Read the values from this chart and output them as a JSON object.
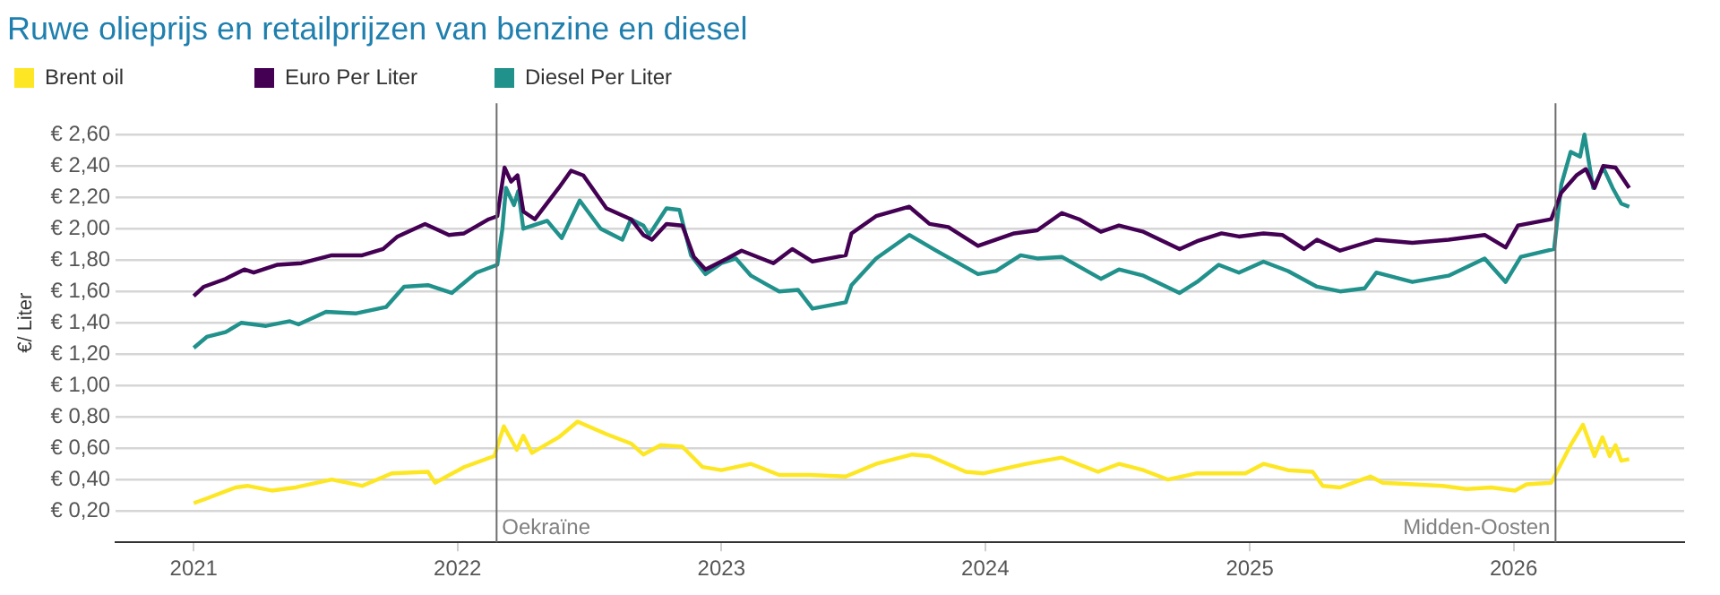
{
  "chart_data": {
    "type": "line",
    "title": "Ruwe olieprijs en retailprijzen van benzine en diesel",
    "ylabel": "€/ Liter",
    "xlim": [
      "2020-09-15",
      "2026-08-25"
    ],
    "xticks": [
      "2021",
      "2022",
      "2023",
      "2024",
      "2025",
      "2026"
    ],
    "ylim": [
      0,
      2.8
    ],
    "yticks": [
      {
        "value": 0.2,
        "label": "€ 0,20"
      },
      {
        "value": 0.4,
        "label": "€ 0,40"
      },
      {
        "value": 0.6,
        "label": "€ 0,60"
      },
      {
        "value": 0.8,
        "label": "€ 0,80"
      },
      {
        "value": 1.0,
        "label": "€ 1,00"
      },
      {
        "value": 1.2,
        "label": "€ 1,20"
      },
      {
        "value": 1.4,
        "label": "€ 1,40"
      },
      {
        "value": 1.6,
        "label": "€ 1,60"
      },
      {
        "value": 1.8,
        "label": "€ 1,80"
      },
      {
        "value": 2.0,
        "label": "€ 2,00"
      },
      {
        "value": 2.2,
        "label": "€ 2,20"
      },
      {
        "value": 2.4,
        "label": "€ 2,40"
      },
      {
        "value": 2.6,
        "label": "€ 2,60"
      }
    ],
    "grid": "y",
    "legend": "top left",
    "marker": "none",
    "line_style": "solid",
    "ref_lines": [
      {
        "axis": "x",
        "value": "2022-02-24",
        "label": "Oekraïne",
        "color": "#6e6e6e"
      },
      {
        "axis": "x",
        "value": "2026-02-28",
        "label": "Midden-Oosten",
        "color": "#6e6e6e"
      }
    ],
    "series": [
      {
        "name": "Brent oil",
        "color": "#fde725",
        "x": [
          "2021-01-01",
          "2021-01-19",
          "2021-02-28",
          "2021-03-16",
          "2021-04-19",
          "2021-05-22",
          "2021-07-11",
          "2021-08-22",
          "2021-10-02",
          "2021-11-21",
          "2021-12-01",
          "2022-01-10",
          "2022-02-21",
          "2022-03-06",
          "2022-03-24",
          "2022-04-02",
          "2022-04-14",
          "2022-05-21",
          "2022-06-16",
          "2022-07-26",
          "2022-08-29",
          "2022-09-15",
          "2022-10-09",
          "2022-11-08",
          "2022-12-06",
          "2023-01-01",
          "2023-02-11",
          "2023-03-22",
          "2023-05-03",
          "2023-06-22",
          "2023-08-03",
          "2023-09-22",
          "2023-10-16",
          "2023-12-05",
          "2023-12-30",
          "2024-02-27",
          "2024-04-16",
          "2024-06-05",
          "2024-07-04",
          "2024-08-07",
          "2024-09-10",
          "2024-10-20",
          "2024-12-26",
          "2025-01-20",
          "2025-02-23",
          "2025-03-29",
          "2025-04-12",
          "2025-05-06",
          "2025-06-17",
          "2025-07-04",
          "2025-09-25",
          "2025-10-28",
          "2025-12-01",
          "2026-01-03",
          "2026-01-19",
          "2026-02-22",
          "2026-03-21",
          "2026-04-07",
          "2026-04-23",
          "2026-05-04",
          "2026-05-14",
          "2026-05-22",
          "2026-05-30",
          "2026-06-10"
        ],
        "values": [
          0.25,
          0.28,
          0.35,
          0.36,
          0.33,
          0.35,
          0.4,
          0.36,
          0.44,
          0.45,
          0.38,
          0.48,
          0.55,
          0.74,
          0.59,
          0.68,
          0.57,
          0.67,
          0.77,
          0.69,
          0.63,
          0.56,
          0.62,
          0.61,
          0.48,
          0.46,
          0.5,
          0.43,
          0.43,
          0.42,
          0.5,
          0.56,
          0.55,
          0.45,
          0.44,
          0.5,
          0.54,
          0.45,
          0.5,
          0.46,
          0.4,
          0.44,
          0.44,
          0.5,
          0.46,
          0.45,
          0.36,
          0.35,
          0.42,
          0.38,
          0.36,
          0.34,
          0.35,
          0.33,
          0.37,
          0.38,
          0.62,
          0.75,
          0.55,
          0.67,
          0.55,
          0.62,
          0.52,
          0.53
        ]
      },
      {
        "name": "Euro Per Liter",
        "color": "#440154",
        "x": [
          "2021-01-01",
          "2021-01-15",
          "2021-02-14",
          "2021-03-12",
          "2021-03-25",
          "2021-04-27",
          "2021-05-30",
          "2021-07-11",
          "2021-08-22",
          "2021-09-20",
          "2021-10-10",
          "2021-11-17",
          "2021-12-20",
          "2022-01-10",
          "2022-02-13",
          "2022-02-25",
          "2022-03-07",
          "2022-03-16",
          "2022-03-25",
          "2022-04-02",
          "2022-04-18",
          "2022-05-21",
          "2022-06-07",
          "2022-06-24",
          "2022-07-26",
          "2022-08-29",
          "2022-09-15",
          "2022-09-27",
          "2022-10-17",
          "2022-11-08",
          "2022-11-24",
          "2022-12-10",
          "2023-01-09",
          "2023-01-29",
          "2023-03-14",
          "2023-04-09",
          "2023-05-07",
          "2023-06-22",
          "2023-06-30",
          "2023-08-03",
          "2023-09-18",
          "2023-10-16",
          "2023-11-11",
          "2023-12-22",
          "2024-02-10",
          "2024-03-13",
          "2024-04-16",
          "2024-05-10",
          "2024-06-09",
          "2024-07-04",
          "2024-08-07",
          "2024-09-26",
          "2024-10-20",
          "2024-11-23",
          "2024-12-17",
          "2025-01-20",
          "2025-02-15",
          "2025-03-17",
          "2025-04-04",
          "2025-05-06",
          "2025-06-25",
          "2025-08-14",
          "2025-10-03",
          "2025-11-22",
          "2025-12-21",
          "2026-01-07",
          "2026-02-22",
          "2026-03-08",
          "2026-03-29",
          "2026-04-11",
          "2026-04-23",
          "2026-05-05",
          "2026-05-22",
          "2026-06-10"
        ],
        "values": [
          1.57,
          1.63,
          1.68,
          1.74,
          1.72,
          1.77,
          1.78,
          1.83,
          1.83,
          1.87,
          1.95,
          2.03,
          1.96,
          1.97,
          2.06,
          2.08,
          2.39,
          2.3,
          2.34,
          2.11,
          2.06,
          2.26,
          2.37,
          2.34,
          2.13,
          2.06,
          1.96,
          1.93,
          2.03,
          2.02,
          1.82,
          1.74,
          1.81,
          1.86,
          1.78,
          1.87,
          1.79,
          1.83,
          1.97,
          2.08,
          2.14,
          2.03,
          2.01,
          1.89,
          1.97,
          1.99,
          2.1,
          2.06,
          1.98,
          2.02,
          1.98,
          1.87,
          1.92,
          1.97,
          1.95,
          1.97,
          1.96,
          1.87,
          1.93,
          1.86,
          1.93,
          1.91,
          1.93,
          1.96,
          1.88,
          2.02,
          2.06,
          2.23,
          2.34,
          2.38,
          2.26,
          2.4,
          2.39,
          2.26
        ]
      },
      {
        "name": "Diesel Per Liter",
        "color": "#21918c",
        "x": [
          "2021-01-01",
          "2021-01-19",
          "2021-02-14",
          "2021-03-08",
          "2021-04-11",
          "2021-05-14",
          "2021-05-26",
          "2021-07-03",
          "2021-08-14",
          "2021-09-24",
          "2021-10-19",
          "2021-11-21",
          "2021-12-24",
          "2022-01-27",
          "2022-02-25",
          "2022-03-04",
          "2022-03-09",
          "2022-03-20",
          "2022-03-26",
          "2022-04-02",
          "2022-05-05",
          "2022-05-25",
          "2022-06-19",
          "2022-07-18",
          "2022-08-17",
          "2022-08-29",
          "2022-09-15",
          "2022-09-23",
          "2022-10-17",
          "2022-11-04",
          "2022-11-20",
          "2022-12-10",
          "2023-01-01",
          "2023-01-21",
          "2023-02-11",
          "2023-03-06",
          "2023-03-22",
          "2023-04-17",
          "2023-05-07",
          "2023-06-22",
          "2023-06-30",
          "2023-08-03",
          "2023-09-18",
          "2023-10-25",
          "2023-12-22",
          "2024-01-16",
          "2024-02-19",
          "2024-03-13",
          "2024-04-16",
          "2024-06-09",
          "2024-07-04",
          "2024-08-07",
          "2024-09-26",
          "2024-10-20",
          "2024-11-19",
          "2024-12-17",
          "2025-01-20",
          "2025-02-23",
          "2025-04-04",
          "2025-05-06",
          "2025-06-09",
          "2025-06-25",
          "2025-08-14",
          "2025-10-03",
          "2025-11-22",
          "2025-12-21",
          "2026-01-11",
          "2026-02-26",
          "2026-03-08",
          "2026-03-21",
          "2026-04-03",
          "2026-04-09",
          "2026-04-21",
          "2026-05-05",
          "2026-05-18",
          "2026-05-30",
          "2026-06-10"
        ],
        "values": [
          1.24,
          1.31,
          1.34,
          1.4,
          1.38,
          1.41,
          1.39,
          1.47,
          1.46,
          1.5,
          1.63,
          1.64,
          1.59,
          1.72,
          1.77,
          2.0,
          2.26,
          2.15,
          2.24,
          2.0,
          2.05,
          1.94,
          2.18,
          2.0,
          1.93,
          2.06,
          2.02,
          1.96,
          2.13,
          2.12,
          1.83,
          1.71,
          1.78,
          1.81,
          1.7,
          1.64,
          1.6,
          1.61,
          1.49,
          1.53,
          1.64,
          1.81,
          1.96,
          1.86,
          1.71,
          1.73,
          1.83,
          1.81,
          1.82,
          1.68,
          1.74,
          1.7,
          1.59,
          1.66,
          1.77,
          1.72,
          1.79,
          1.73,
          1.63,
          1.6,
          1.62,
          1.72,
          1.66,
          1.7,
          1.81,
          1.66,
          1.82,
          1.87,
          2.28,
          2.49,
          2.46,
          2.6,
          2.26,
          2.39,
          2.26,
          2.16,
          2.14
        ]
      }
    ]
  }
}
